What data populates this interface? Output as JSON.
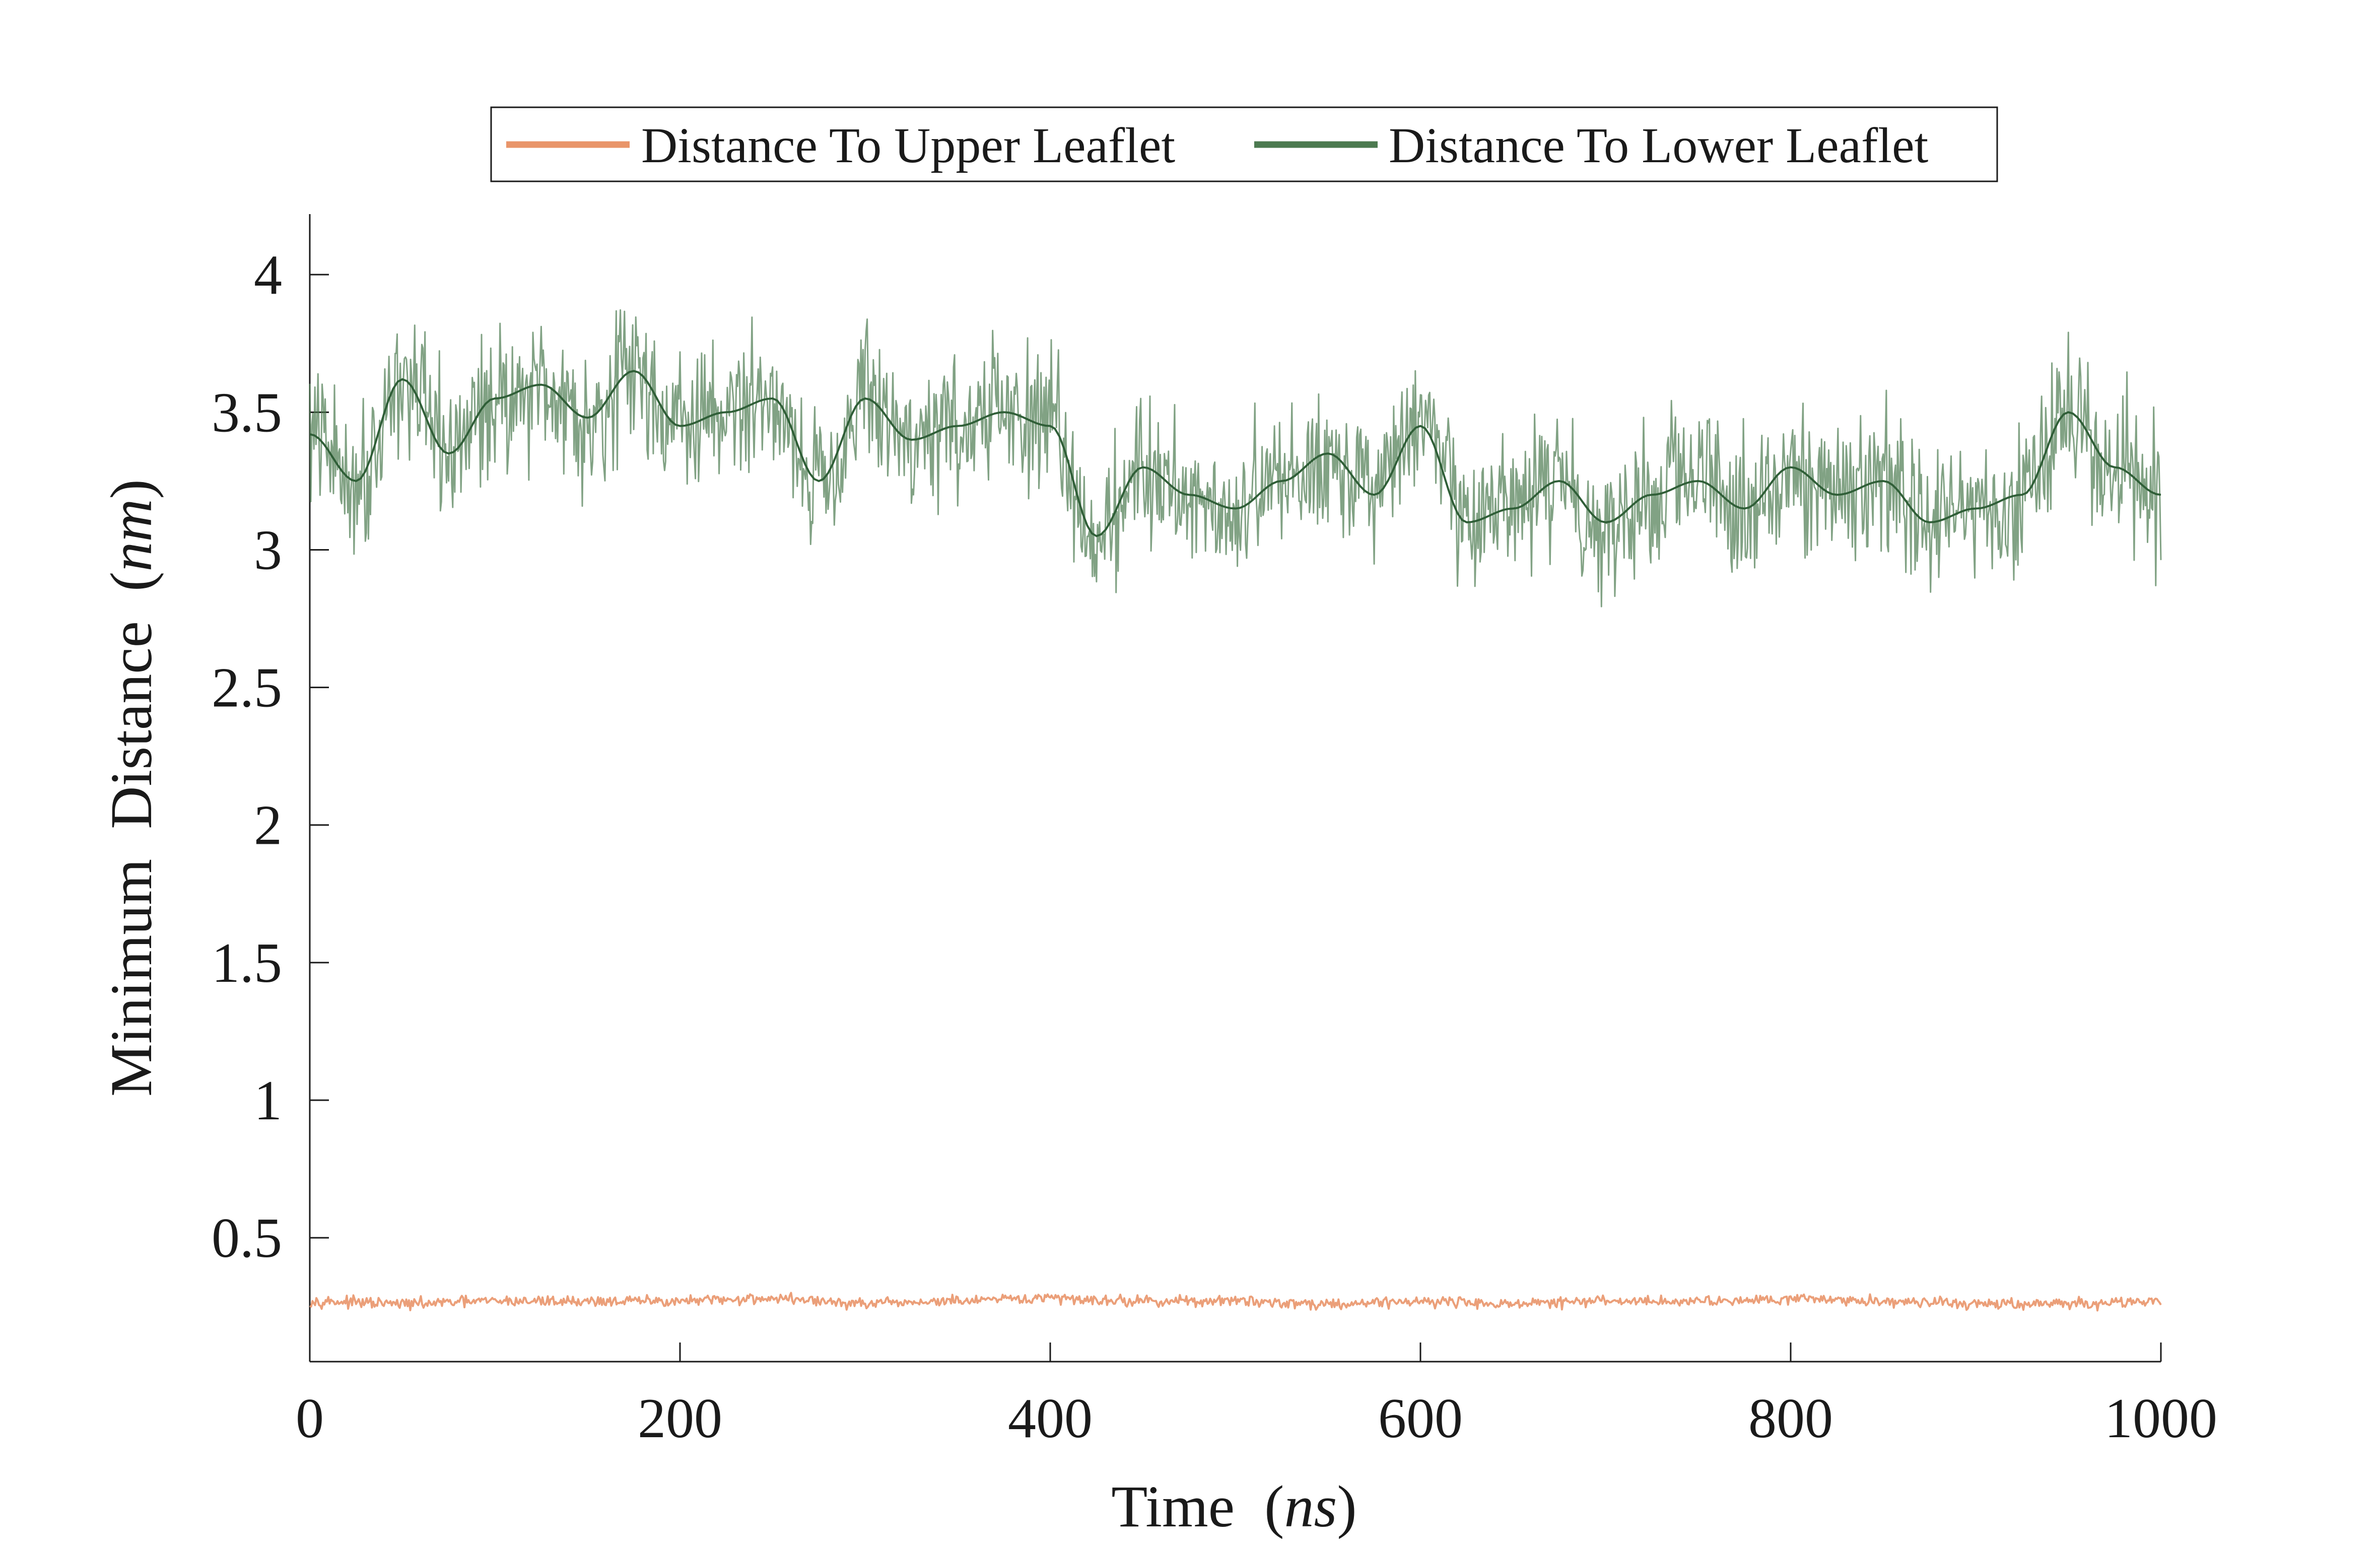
{
  "chart_data": {
    "type": "line",
    "xlabel": "Time",
    "xlabel_unit": "ns",
    "ylabel": "Minimum  Distance",
    "ylabel_unit": "nm",
    "xlim": [
      0,
      1000
    ],
    "ylim": [
      0.05,
      4.22
    ],
    "x_ticks": [
      0,
      200,
      400,
      600,
      800,
      1000
    ],
    "x_tick_labels": [
      "0",
      "200",
      "400",
      "600",
      "800",
      "1000"
    ],
    "y_ticks": [
      0.5,
      1,
      1.5,
      2,
      2.5,
      3,
      3.5,
      4
    ],
    "y_tick_labels": [
      "0.5",
      "1",
      "1.5",
      "2",
      "2.5",
      "3",
      "3.5",
      "4"
    ],
    "grid": false,
    "legend_position": "top-center",
    "series": [
      {
        "name": "Distance To Upper Leaflet",
        "color": "#E9956A",
        "x": [
          0,
          50,
          100,
          150,
          200,
          250,
          300,
          350,
          400,
          450,
          500,
          550,
          600,
          650,
          700,
          750,
          800,
          850,
          900,
          950,
          1000
        ],
        "y": [
          0.27,
          0.26,
          0.27,
          0.27,
          0.27,
          0.28,
          0.26,
          0.27,
          0.28,
          0.27,
          0.27,
          0.26,
          0.27,
          0.26,
          0.27,
          0.27,
          0.28,
          0.27,
          0.26,
          0.26,
          0.27
        ]
      },
      {
        "name": "Distance To Lower Leaflet",
        "color": "#4C7A50",
        "x": [
          0,
          25,
          50,
          75,
          100,
          125,
          150,
          175,
          200,
          225,
          250,
          275,
          300,
          325,
          350,
          375,
          400,
          425,
          450,
          475,
          500,
          525,
          550,
          575,
          600,
          625,
          650,
          675,
          700,
          725,
          750,
          775,
          800,
          825,
          850,
          875,
          900,
          925,
          950,
          975,
          1000
        ],
        "y": [
          3.42,
          3.25,
          3.62,
          3.35,
          3.55,
          3.6,
          3.48,
          3.65,
          3.45,
          3.5,
          3.55,
          3.25,
          3.55,
          3.4,
          3.45,
          3.5,
          3.45,
          3.05,
          3.3,
          3.2,
          3.15,
          3.25,
          3.35,
          3.2,
          3.45,
          3.1,
          3.15,
          3.25,
          3.1,
          3.2,
          3.25,
          3.15,
          3.3,
          3.2,
          3.25,
          3.1,
          3.15,
          3.2,
          3.5,
          3.3,
          3.2
        ]
      }
    ]
  }
}
